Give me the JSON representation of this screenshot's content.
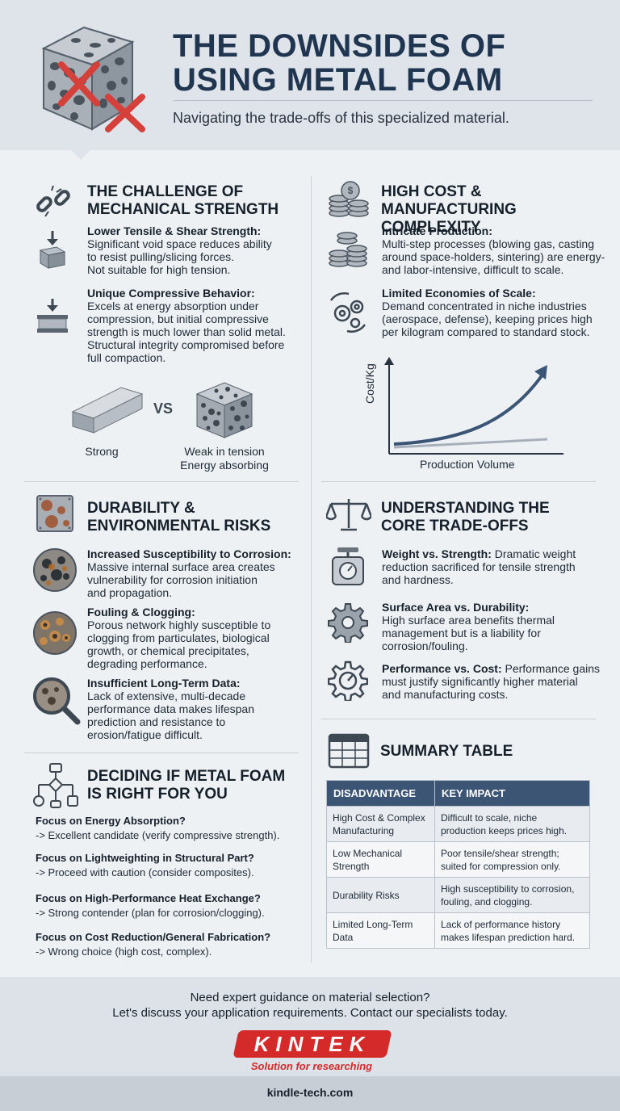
{
  "header": {
    "title_line1": "THE DOWNSIDES OF",
    "title_line2": "USING METAL FOAM",
    "subtitle": "Navigating the trade-offs of this specialized material."
  },
  "mechanical": {
    "title_line1": "THE CHALLENGE OF",
    "title_line2": "MECHANICAL STRENGTH",
    "items": [
      {
        "title": "Lower Tensile & Shear Strength:",
        "body": [
          "Significant void space reduces ability",
          "to resist pulling/slicing forces.",
          "Not suitable for high tension."
        ]
      },
      {
        "title": "Unique Compressive Behavior:",
        "body": [
          "Excels at energy absorption under",
          "compression, but initial compressive",
          "strength is much lower than solid metal.",
          "Structural integrity compromised before",
          "full compaction."
        ]
      }
    ],
    "compare": {
      "vs": "VS",
      "left_caption": "Strong",
      "right_caption_line1": "Weak in tension",
      "right_caption_line2": "Energy absorbing"
    }
  },
  "cost": {
    "title_line1": "HIGH COST & MANUFACTURING",
    "title_line2": "COMPLEXITY",
    "items": [
      {
        "title": "Intricate Production:",
        "body": [
          "Multi-step processes (blowing gas, casting",
          "around space-holders, sintering) are energy-",
          "and labor-intensive, difficult to scale."
        ]
      },
      {
        "title": "Limited Economies of Scale:",
        "body": [
          "Demand concentrated in niche industries",
          "(aerospace, defense), keeping prices high",
          "per kilogram compared to standard stock."
        ]
      }
    ],
    "chart": {
      "ylabel": "Cost/Kg",
      "xlabel": "Production Volume"
    }
  },
  "durability": {
    "title_line1": "DURABILITY &",
    "title_line2": "ENVIRONMENTAL RISKS",
    "items": [
      {
        "title": "Increased Susceptibility to Corrosion:",
        "body": [
          "Massive internal surface area creates",
          "vulnerability for corrosion initiation",
          "and propagation."
        ]
      },
      {
        "title": "Fouling & Clogging:",
        "body": [
          "Porous network highly susceptible to",
          "clogging from particulates, biological",
          "growth, or chemical precipitates,",
          "degrading performance."
        ]
      },
      {
        "title": "Insufficient Long-Term Data:",
        "body": [
          "Lack of extensive, multi-decade",
          "performance data makes lifespan",
          "prediction and resistance to",
          "erosion/fatigue difficult."
        ]
      }
    ]
  },
  "tradeoffs": {
    "title_line1": "UNDERSTANDING THE",
    "title_line2": "CORE TRADE-OFFS",
    "items": [
      {
        "title": "Weight vs. Strength:",
        "lead": " Dramatic weight",
        "body": [
          "reduction sacrificed for tensile strength",
          "and hardness."
        ]
      },
      {
        "title": "Surface Area vs. Durability:",
        "lead": "",
        "body": [
          "High surface area benefits thermal",
          "management but is a liability for",
          "corrosion/fouling."
        ]
      },
      {
        "title": "Performance vs. Cost:",
        "lead": " Performance gains",
        "body": [
          "must justify significantly higher material",
          "and manufacturing costs."
        ]
      }
    ]
  },
  "deciding": {
    "title_line1": "DECIDING IF METAL FOAM",
    "title_line2": "IS RIGHT FOR YOU",
    "items": [
      {
        "q": "Focus on Energy Absorption?",
        "a": "-> Excellent candidate (verify compressive strength)."
      },
      {
        "q": "Focus on Lightweighting in Structural Part?",
        "a": "-> Proceed with caution (consider composites)."
      },
      {
        "q": "Focus on High-Performance Heat Exchange?",
        "a": "-> Strong contender (plan for corrosion/clogging)."
      },
      {
        "q": "Focus on Cost Reduction/General Fabrication?",
        "a": "-> Wrong choice (high cost, complex)."
      }
    ]
  },
  "summary": {
    "title": "SUMMARY TABLE",
    "headers": [
      "DISADVANTAGE",
      "KEY IMPACT"
    ],
    "rows": [
      [
        "High Cost & Complex Manufacturing",
        "Difficult to scale, niche production keeps prices high."
      ],
      [
        "Low Mechanical Strength",
        "Poor tensile/shear strength; suited for compression only."
      ],
      [
        "Durability Risks",
        "High susceptibility to corrosion, fouling, and clogging."
      ],
      [
        "Limited Long-Term Data",
        "Lack of performance history makes lifespan prediction hard."
      ]
    ]
  },
  "footer": {
    "cta_line1": "Need expert guidance on material selection?",
    "cta_line2": "Let's discuss your application requirements. Contact our specialists today.",
    "logo_text": "KINTEK",
    "logo_tagline": "Solution for researching",
    "url": "kindle-tech.com"
  },
  "colors": {
    "accent": "#3c5574",
    "brand_red": "#d42a2a",
    "title": "#1f3550"
  }
}
